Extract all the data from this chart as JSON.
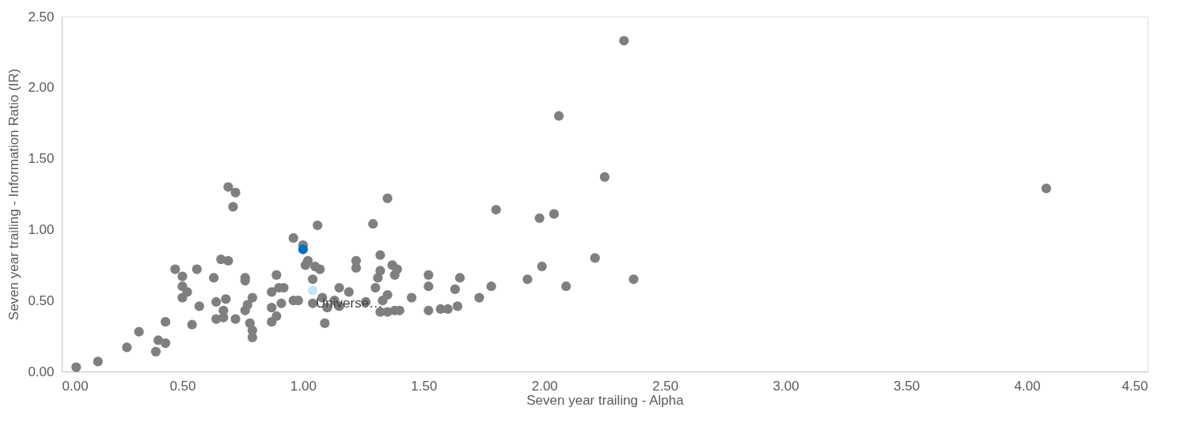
{
  "chart_data": {
    "type": "scatter",
    "xlabel": "Seven year trailing -  Alpha",
    "ylabel": "Seven year trailing - Information Ratio (IR)",
    "xlim": [
      0,
      4.5
    ],
    "xticks": [
      {
        "value": 0,
        "label": "0.00"
      },
      {
        "value": 0.5,
        "label": "0.50"
      },
      {
        "value": 1,
        "label": "1.00"
      },
      {
        "value": 1.5,
        "label": "1.50"
      },
      {
        "value": 2,
        "label": "2.00"
      },
      {
        "value": 2.5,
        "label": "2.50"
      },
      {
        "value": 3,
        "label": "3.00"
      },
      {
        "value": 3.5,
        "label": "3.50"
      },
      {
        "value": 4,
        "label": "4.00"
      },
      {
        "value": 4.5,
        "label": "4.50"
      }
    ],
    "ylim": [
      0,
      2.5
    ],
    "yticks": [
      {
        "value": 0,
        "label": "0.00"
      },
      {
        "value": 0.5,
        "label": "0.50"
      },
      {
        "value": 1,
        "label": "1.00"
      },
      {
        "value": 1.5,
        "label": "1.50"
      },
      {
        "value": 2,
        "label": "2.00"
      },
      {
        "value": 2.5,
        "label": "2.50"
      }
    ],
    "grid": false,
    "legend": false,
    "marker": "circle",
    "series": [
      {
        "color": "#7f7f7f",
        "x": [
          0.06,
          0.15,
          0.27,
          0.32,
          0.39,
          0.4,
          0.43,
          0.43,
          0.47,
          0.5,
          0.5,
          0.52,
          0.5,
          0.54,
          0.56,
          0.57,
          0.63,
          0.64,
          0.64,
          0.66,
          0.68,
          0.67,
          0.67,
          0.69,
          0.69,
          0.72,
          0.71,
          0.72,
          0.76,
          0.76,
          0.79,
          0.77,
          0.76,
          0.78,
          0.79,
          0.79,
          0.87,
          0.89,
          0.87,
          0.9,
          0.92,
          0.91,
          0.89,
          0.87,
          0.96,
          0.98,
          0.96,
          1.06,
          1.0,
          1.02,
          1.01,
          1.05,
          1.07,
          1.04,
          1.04,
          1.08,
          1.1,
          1.09,
          1.13,
          1.15,
          1.15,
          1.19,
          1.22,
          1.22,
          1.26,
          1.35,
          1.29,
          1.32,
          1.37,
          1.39,
          1.38,
          1.32,
          1.31,
          1.3,
          1.35,
          1.33,
          1.32,
          1.35,
          1.38,
          1.4,
          1.45,
          1.52,
          1.52,
          1.52,
          1.57,
          1.6,
          1.64,
          1.63,
          1.65,
          1.73,
          1.78,
          1.8,
          1.93,
          1.99,
          2.04,
          2.09,
          2.21,
          2.25,
          2.37,
          2.33,
          2.06,
          1.98,
          4.08
        ],
        "values": [
          0.03,
          0.07,
          0.17,
          0.28,
          0.14,
          0.22,
          0.2,
          0.35,
          0.72,
          0.67,
          0.6,
          0.56,
          0.52,
          0.33,
          0.72,
          0.46,
          0.66,
          0.37,
          0.49,
          0.79,
          0.51,
          0.43,
          0.38,
          0.78,
          1.3,
          1.26,
          1.16,
          0.37,
          0.66,
          0.64,
          0.52,
          0.47,
          0.43,
          0.34,
          0.29,
          0.24,
          0.45,
          0.68,
          0.56,
          0.59,
          0.59,
          0.48,
          0.39,
          0.35,
          0.5,
          0.5,
          0.94,
          1.03,
          0.89,
          0.78,
          0.75,
          0.74,
          0.72,
          0.65,
          0.48,
          0.52,
          0.45,
          0.34,
          0.5,
          0.46,
          0.59,
          0.56,
          0.78,
          0.73,
          0.49,
          1.22,
          1.04,
          0.82,
          0.75,
          0.72,
          0.68,
          0.71,
          0.66,
          0.59,
          0.54,
          0.5,
          0.42,
          0.42,
          0.43,
          0.43,
          0.52,
          0.68,
          0.6,
          0.43,
          0.44,
          0.44,
          0.46,
          0.58,
          0.66,
          0.52,
          0.6,
          1.14,
          0.65,
          0.74,
          1.11,
          0.6,
          0.8,
          1.37,
          0.65,
          2.33,
          1.8,
          1.08,
          1.29
        ]
      },
      {
        "color": "#0070c0",
        "x": [
          1.0
        ],
        "values": [
          0.86
        ]
      },
      {
        "color": "#c5e4f7",
        "x": [
          1.04
        ],
        "values": [
          0.57
        ]
      }
    ],
    "annotations": [
      {
        "text": "Universe…",
        "x": 1.04,
        "y": 0.57
      }
    ]
  }
}
